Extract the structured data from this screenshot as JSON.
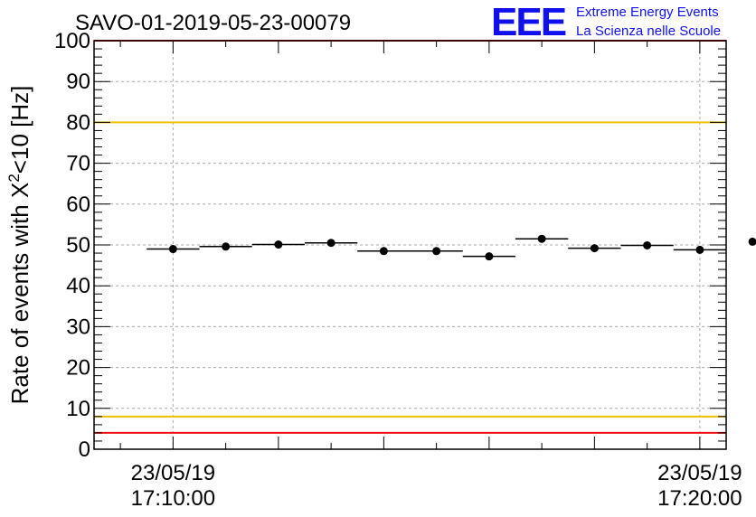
{
  "chart_data": {
    "type": "scatter",
    "title": "SAVO-01-2019-05-23-00079",
    "ylabel": "Rate of events with X²<10 [Hz]",
    "ylabel_parts": {
      "main": "Rate of events with X",
      "sup": "2",
      "rest": "<10 [Hz]"
    },
    "xlabel": "",
    "ylim": [
      0,
      100
    ],
    "xlim_minutes": [
      -1.5,
      10.5
    ],
    "yticks": [
      0,
      10,
      20,
      30,
      40,
      50,
      60,
      70,
      80,
      90,
      100
    ],
    "xticks": [
      {
        "t": 0,
        "date": "23/05/19",
        "time": "17:10:00"
      },
      {
        "t": 10,
        "date": "23/05/19",
        "time": "17:20:00"
      }
    ],
    "x_grid_minutes": [
      0,
      10
    ],
    "y_grid": true,
    "bin_width_minutes": 1,
    "series": [
      {
        "name": "rate",
        "x_minutes": [
          0,
          1,
          2,
          3,
          4,
          5,
          6,
          7,
          8,
          9,
          10,
          11
        ],
        "values": [
          49.0,
          49.6,
          50.1,
          50.5,
          48.5,
          48.5,
          47.2,
          51.5,
          49.2,
          49.9,
          48.8,
          50.8
        ]
      }
    ],
    "reference_lines": [
      {
        "y": 100,
        "color": "#ee1111"
      },
      {
        "y": 80,
        "color": "#f0c000"
      },
      {
        "y": 8,
        "color": "#f0c000"
      },
      {
        "y": 4,
        "color": "#ee1111"
      }
    ]
  },
  "logo": {
    "mark": "EEE",
    "line1": "Extreme Energy Events",
    "line2": "La Scienza nelle Scuole"
  }
}
